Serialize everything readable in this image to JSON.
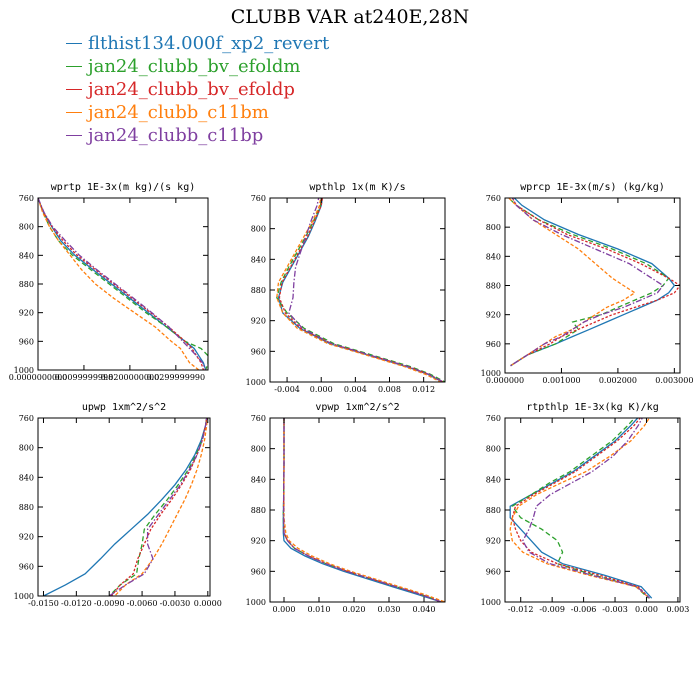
{
  "title": "CLUBB VAR at240E,28N",
  "legend": [
    {
      "label": "flthist134.000f_xp2_revert",
      "color": "#1f77b4"
    },
    {
      "label": "jan24_clubb_bv_efoldm",
      "color": "#2ca02c"
    },
    {
      "label": "jan24_clubb_bv_efoldp",
      "color": "#d62728"
    },
    {
      "label": "jan24_clubb_c11bm",
      "color": "#ff7f0e"
    },
    {
      "label": "jan24_clubb_c11bp",
      "color": "#7f3fa0"
    }
  ],
  "chart_data": [
    {
      "type": "line",
      "title": "wprtp  1E-3x(m kg)/(s kg)",
      "xlim": [
        0.0,
        0.037
      ],
      "ylim": [
        760,
        1000
      ],
      "xticks": [
        0.0,
        0.01,
        0.02,
        0.03
      ],
      "xticklabels": [
        "0.0000000000",
        "0.0099999998",
        "0.0200000000",
        "0.0299999990"
      ],
      "yticks": [
        760,
        800,
        840,
        880,
        920,
        960,
        1000
      ],
      "y": [
        760,
        780,
        800,
        820,
        840,
        860,
        880,
        900,
        920,
        940,
        960,
        970,
        980,
        990,
        1000
      ],
      "series": [
        {
          "x": [
            0.0,
            0.0012,
            0.003,
            0.005,
            0.008,
            0.012,
            0.016,
            0.02,
            0.024,
            0.028,
            0.032,
            0.034,
            0.035,
            0.036,
            0.0365
          ]
        },
        {
          "x": [
            0.0,
            0.0011,
            0.0025,
            0.0045,
            0.0075,
            0.0115,
            0.0155,
            0.0195,
            0.0235,
            0.028,
            0.032,
            0.0355,
            0.037,
            0.037,
            0.0365
          ]
        },
        {
          "x": [
            0.0,
            0.0012,
            0.003,
            0.0055,
            0.0085,
            0.0125,
            0.0165,
            0.0205,
            0.0245,
            0.0285,
            0.032,
            0.0335,
            0.0345,
            0.0355,
            0.036
          ]
        },
        {
          "x": [
            0.0,
            0.001,
            0.0025,
            0.0045,
            0.007,
            0.0095,
            0.0125,
            0.0165,
            0.021,
            0.0255,
            0.029,
            0.031,
            0.032,
            0.033,
            0.035
          ]
        },
        {
          "x": [
            0.0,
            0.0013,
            0.0032,
            0.006,
            0.009,
            0.0128,
            0.0168,
            0.0208,
            0.0248,
            0.0285,
            0.0315,
            0.033,
            0.0345,
            0.0358,
            0.0365
          ]
        }
      ]
    },
    {
      "type": "line",
      "title": "wpthlp  1x(m K)/s",
      "xlim": [
        -0.006,
        0.0145
      ],
      "ylim": [
        760,
        1000
      ],
      "xticks": [
        -0.004,
        0.0,
        0.004,
        0.008,
        0.012
      ],
      "xticklabels": [
        "-0.004",
        "0.000",
        "0.004",
        "0.008",
        "0.012"
      ],
      "yticks": [
        760,
        800,
        840,
        880,
        920,
        960,
        1000
      ],
      "y": [
        755,
        770,
        790,
        810,
        830,
        850,
        870,
        890,
        910,
        930,
        950,
        960,
        970,
        980,
        990,
        1000
      ],
      "series": [
        {
          "x": [
            0.0002,
            0.0,
            -0.0007,
            -0.0015,
            -0.0025,
            -0.0035,
            -0.0045,
            -0.005,
            -0.0045,
            -0.0025,
            0.001,
            0.004,
            0.007,
            0.01,
            0.0125,
            0.0142
          ]
        },
        {
          "x": [
            0.0001,
            -0.0001,
            -0.0009,
            -0.0018,
            -0.0028,
            -0.0038,
            -0.0047,
            -0.0052,
            -0.004,
            -0.002,
            0.0015,
            0.0045,
            0.0075,
            0.0105,
            0.0128,
            0.0145
          ]
        },
        {
          "x": [
            0.0002,
            0.0,
            -0.0008,
            -0.0016,
            -0.0026,
            -0.0036,
            -0.0046,
            -0.0049,
            -0.0042,
            -0.0024,
            0.0012,
            0.0042,
            0.0072,
            0.0102,
            0.0126,
            0.0143
          ]
        },
        {
          "x": [
            0.0,
            -0.0002,
            -0.001,
            -0.002,
            -0.003,
            -0.004,
            -0.005,
            -0.0052,
            -0.0045,
            -0.0028,
            0.0008,
            0.0038,
            0.0068,
            0.0098,
            0.0122,
            0.014
          ]
        },
        {
          "x": [
            -0.0002,
            -0.0005,
            -0.0012,
            -0.0018,
            -0.0024,
            -0.003,
            -0.0032,
            -0.0033,
            -0.0038,
            -0.0022,
            0.0012,
            0.0042,
            0.0072,
            0.0102,
            0.0126,
            0.0143
          ]
        }
      ]
    },
    {
      "type": "line",
      "title": "wprcp  1E-3x(m/s) (kg/kg)",
      "xlim": [
        0.0,
        0.0031
      ],
      "ylim": [
        760,
        1000
      ],
      "xticks": [
        0.0,
        0.001,
        0.002,
        0.003
      ],
      "xticklabels": [
        "0.000000",
        "0.001000",
        "0.002000",
        "0.003000"
      ],
      "yticks": [
        760,
        800,
        840,
        880,
        920,
        960,
        1000
      ],
      "y": [
        755,
        770,
        790,
        810,
        830,
        850,
        870,
        880,
        890,
        900,
        910,
        920,
        930,
        940,
        950,
        960,
        975,
        990
      ],
      "series": [
        {
          "x": [
            0.0001,
            0.0003,
            0.0007,
            0.0013,
            0.002,
            0.0026,
            0.0029,
            0.003,
            0.0029,
            0.0027,
            0.0024,
            0.0021,
            0.0018,
            0.0015,
            0.0012,
            0.0009,
            0.0004,
            0.0001
          ]
        },
        {
          "x": [
            0.0,
            0.0002,
            0.0006,
            0.0012,
            0.0019,
            0.0025,
            0.0029,
            0.0028,
            0.0026,
            0.0023,
            0.002,
            0.0017,
            0.0012,
            0.0013,
            0.0011,
            0.0009,
            0.0004,
            0.0001
          ]
        },
        {
          "x": [
            0.0001,
            0.0002,
            0.0006,
            0.0011,
            0.0018,
            0.0024,
            0.0029,
            0.0031,
            0.003,
            0.0027,
            0.0023,
            0.0019,
            0.0016,
            0.0013,
            0.001,
            0.0008,
            0.0004,
            0.0001
          ]
        },
        {
          "x": [
            0.0,
            0.0002,
            0.0005,
            0.0009,
            0.0013,
            0.0016,
            0.0019,
            0.0021,
            0.0023,
            0.0021,
            0.0018,
            0.0016,
            0.0014,
            0.0012,
            0.0009,
            0.0007,
            0.0004,
            0.0001
          ]
        },
        {
          "x": [
            0.0001,
            0.0002,
            0.0005,
            0.001,
            0.0016,
            0.0022,
            0.0026,
            0.0028,
            0.0027,
            0.0024,
            0.0021,
            0.0017,
            0.0014,
            0.0012,
            0.001,
            0.0007,
            0.0004,
            0.0001
          ]
        }
      ]
    },
    {
      "type": "line",
      "title": "upwp  1xm^2/s^2",
      "xlim": [
        -0.0155,
        0.0002
      ],
      "ylim": [
        760,
        1000
      ],
      "xticks": [
        -0.015,
        -0.012,
        -0.009,
        -0.006,
        -0.003,
        0.0
      ],
      "xticklabels": [
        "-0.0150",
        "-0.0120",
        "-0.0090",
        "-0.0060",
        "-0.0030",
        "0.0000"
      ],
      "yticks": [
        760,
        800,
        840,
        880,
        920,
        960,
        1000
      ],
      "y": [
        750,
        770,
        790,
        810,
        830,
        850,
        870,
        890,
        910,
        930,
        950,
        970,
        985,
        1000
      ],
      "series": [
        {
          "x": [
            0.0,
            -0.0002,
            -0.0006,
            -0.0012,
            -0.002,
            -0.003,
            -0.0042,
            -0.0055,
            -0.007,
            -0.0085,
            -0.0098,
            -0.0112,
            -0.013,
            -0.015
          ]
        },
        {
          "x": [
            0.0,
            -0.0002,
            -0.0005,
            -0.0011,
            -0.0018,
            -0.0027,
            -0.0037,
            -0.0048,
            -0.0058,
            -0.006,
            -0.0063,
            -0.0065,
            -0.008,
            -0.009
          ]
        },
        {
          "x": [
            0.0,
            -0.0002,
            -0.0005,
            -0.001,
            -0.0016,
            -0.0024,
            -0.0033,
            -0.0043,
            -0.0052,
            -0.0058,
            -0.0064,
            -0.0068,
            -0.008,
            -0.0088
          ]
        },
        {
          "x": [
            0.0,
            -0.0001,
            -0.0003,
            -0.0006,
            -0.001,
            -0.0015,
            -0.0021,
            -0.0028,
            -0.0035,
            -0.0042,
            -0.005,
            -0.006,
            -0.0075,
            -0.0085
          ]
        },
        {
          "x": [
            0.0,
            -0.0002,
            -0.0005,
            -0.001,
            -0.0017,
            -0.0025,
            -0.0035,
            -0.0045,
            -0.0055,
            -0.0055,
            -0.005,
            -0.0058,
            -0.0075,
            -0.009
          ]
        }
      ]
    },
    {
      "type": "line",
      "title": "vpwp  1xm^2/s^2",
      "xlim": [
        -0.004,
        0.046
      ],
      "ylim": [
        760,
        1000
      ],
      "xticks": [
        0.0,
        0.01,
        0.02,
        0.03,
        0.04
      ],
      "xticklabels": [
        "0.000",
        "0.010",
        "0.020",
        "0.030",
        "0.040"
      ],
      "yticks": [
        760,
        800,
        840,
        880,
        920,
        960,
        1000
      ],
      "y": [
        755,
        780,
        820,
        860,
        890,
        910,
        920,
        930,
        940,
        950,
        960,
        970,
        980,
        990,
        1000
      ],
      "series": [
        {
          "x": [
            0.0,
            0.0,
            0.0,
            -0.0001,
            -0.0002,
            -0.0002,
            0.0,
            0.002,
            0.006,
            0.011,
            0.017,
            0.024,
            0.031,
            0.038,
            0.045
          ]
        },
        {
          "x": [
            0.0,
            0.0,
            0.0,
            -0.0001,
            -0.0002,
            0.0,
            0.001,
            0.003,
            0.007,
            0.012,
            0.018,
            0.025,
            0.032,
            0.039,
            0.045
          ]
        },
        {
          "x": [
            0.0,
            0.0,
            0.0,
            -0.0001,
            -0.0001,
            0.0,
            0.001,
            0.003,
            0.007,
            0.012,
            0.018,
            0.025,
            0.032,
            0.039,
            0.045
          ]
        },
        {
          "x": [
            0.0,
            0.0,
            0.0,
            0.0,
            0.0,
            0.0005,
            0.0015,
            0.004,
            0.008,
            0.013,
            0.019,
            0.026,
            0.033,
            0.04,
            0.046
          ]
        },
        {
          "x": [
            0.0,
            0.0,
            0.0,
            -0.0001,
            -0.0001,
            0.0,
            0.001,
            0.003,
            0.007,
            0.012,
            0.018,
            0.025,
            0.032,
            0.039,
            0.045
          ]
        }
      ]
    },
    {
      "type": "line",
      "title": "rtpthlp  1E-3x(kg K)/kg",
      "xlim": [
        -0.0135,
        0.0032
      ],
      "ylim": [
        760,
        1000
      ],
      "xticks": [
        -0.012,
        -0.009,
        -0.006,
        -0.003,
        0.0,
        0.003
      ],
      "xticklabels": [
        "-0.012",
        "-0.009",
        "-0.006",
        "-0.003",
        "0.000",
        "0.003"
      ],
      "yticks": [
        760,
        800,
        840,
        880,
        920,
        960,
        1000
      ],
      "y": [
        755,
        770,
        790,
        810,
        830,
        845,
        860,
        875,
        890,
        905,
        920,
        935,
        950,
        965,
        980,
        995
      ],
      "series": [
        {
          "x": [
            -0.0005,
            -0.0015,
            -0.003,
            -0.005,
            -0.007,
            -0.009,
            -0.011,
            -0.013,
            -0.013,
            -0.012,
            -0.011,
            -0.01,
            -0.008,
            -0.004,
            -0.0005,
            0.0005
          ]
        },
        {
          "x": [
            -0.0008,
            -0.0018,
            -0.0033,
            -0.0053,
            -0.0073,
            -0.0093,
            -0.011,
            -0.0128,
            -0.012,
            -0.01,
            -0.0085,
            -0.008,
            -0.0085,
            -0.005,
            -0.001,
            0.0002
          ]
        },
        {
          "x": [
            -0.0003,
            -0.0012,
            -0.0028,
            -0.0048,
            -0.0068,
            -0.0088,
            -0.0108,
            -0.0125,
            -0.0128,
            -0.0125,
            -0.012,
            -0.011,
            -0.0085,
            -0.0045,
            -0.0008,
            0.0003
          ]
        },
        {
          "x": [
            0.0005,
            -0.0002,
            -0.0015,
            -0.0035,
            -0.0058,
            -0.0082,
            -0.0105,
            -0.0122,
            -0.0128,
            -0.013,
            -0.0128,
            -0.0118,
            -0.0095,
            -0.0055,
            -0.001,
            0.0003
          ]
        },
        {
          "x": [
            -0.0002,
            -0.0008,
            -0.0018,
            -0.0032,
            -0.0052,
            -0.0072,
            -0.0092,
            -0.0105,
            -0.0108,
            -0.0112,
            -0.0118,
            -0.0112,
            -0.0092,
            -0.0052,
            -0.0009,
            0.0003
          ]
        }
      ]
    }
  ]
}
